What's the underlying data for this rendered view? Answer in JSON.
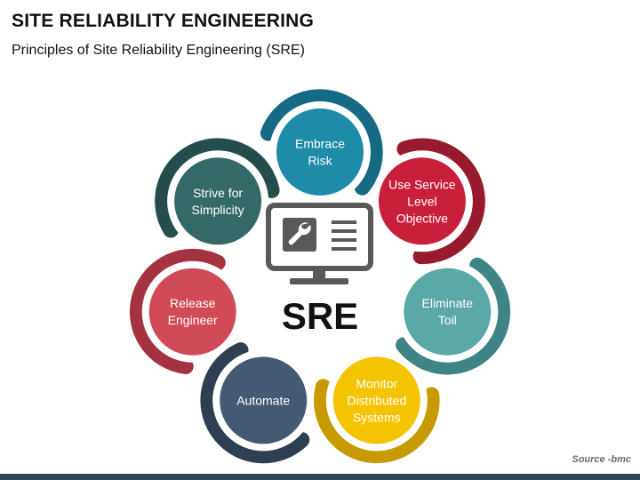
{
  "title": "SITE RELIABILITY ENGINEERING",
  "subtitle": "Principles of Site Reliability Engineering (SRE)",
  "center": {
    "label": "SRE",
    "icon": "monitor-wrench-icon"
  },
  "source": "Source -bmc",
  "colors": {
    "bottom_bar": "#31475a",
    "center_icon": "#595959"
  },
  "principles": [
    {
      "id": "embrace-risk",
      "lines": [
        "Embrace",
        "Risk"
      ],
      "color": "#1e8ba9",
      "arc_color": "#156a84"
    },
    {
      "id": "use-service-level-objective",
      "lines": [
        "Use Service",
        "Level",
        "Objective"
      ],
      "color": "#c8203a",
      "arc_color": "#971b2c"
    },
    {
      "id": "eliminate-toil",
      "lines": [
        "Eliminate",
        "Toil"
      ],
      "color": "#5aa9a7",
      "arc_color": "#3f8585"
    },
    {
      "id": "monitor-distributed-systems",
      "lines": [
        "Monitor",
        "Distributed",
        "Systems"
      ],
      "color": "#f4c400",
      "arc_color": "#c69a00"
    },
    {
      "id": "automate",
      "lines": [
        "Automate"
      ],
      "color": "#435a72",
      "arc_color": "#2e3f52"
    },
    {
      "id": "release-engineer",
      "lines": [
        "Release",
        "Engineer"
      ],
      "color": "#d04a58",
      "arc_color": "#a53240"
    },
    {
      "id": "strive-for-simplicity",
      "lines": [
        "Strive for",
        "Simplicity"
      ],
      "color": "#336a68",
      "arc_color": "#244e4d"
    }
  ]
}
